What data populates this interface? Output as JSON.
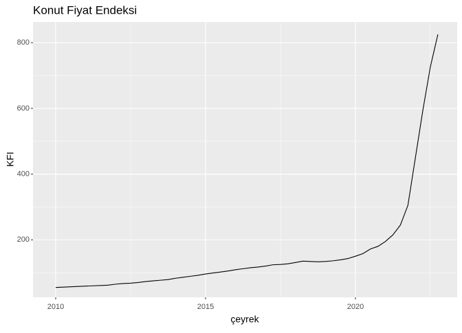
{
  "chart_data": {
    "type": "line",
    "title": "Konut Fiyat Endeksi",
    "x_label": "çeyrek",
    "y_label": "KFI",
    "x": [
      2010,
      2010.25,
      2010.5,
      2010.75,
      2011,
      2011.25,
      2011.5,
      2011.75,
      2012,
      2012.25,
      2012.5,
      2012.75,
      2013,
      2013.25,
      2013.5,
      2013.75,
      2014,
      2014.25,
      2014.5,
      2014.75,
      2015,
      2015.25,
      2015.5,
      2015.75,
      2016,
      2016.25,
      2016.5,
      2016.75,
      2017,
      2017.25,
      2017.5,
      2017.75,
      2018,
      2018.25,
      2018.5,
      2018.75,
      2019,
      2019.25,
      2019.5,
      2019.75,
      2020,
      2020.25,
      2020.5,
      2020.75,
      2021,
      2021.25,
      2021.5,
      2021.75,
      2022,
      2022.25,
      2022.5,
      2022.75
    ],
    "series": [
      {
        "color": "#000000",
        "values": [
          55,
          56,
          57,
          58,
          59,
          60,
          61,
          62,
          65,
          67,
          68,
          70,
          73,
          75,
          77,
          79,
          83,
          86,
          89,
          92,
          96,
          99,
          102,
          105,
          109,
          112,
          115,
          117,
          120,
          124,
          125,
          127,
          131,
          135,
          134,
          133,
          134,
          136,
          139,
          143,
          150,
          158,
          172,
          180,
          195,
          215,
          245,
          305,
          450,
          595,
          727,
          825
        ]
      }
    ],
    "xlim": [
      2009.243,
      2023.394
    ],
    "xticks": [
      2010,
      2015,
      2020
    ],
    "ylim": [
      25,
      863
    ],
    "yticks": [
      200,
      400,
      600,
      800
    ],
    "grid": true
  }
}
